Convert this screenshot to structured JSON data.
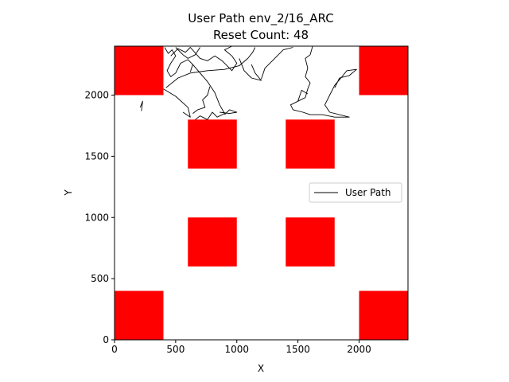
{
  "chart_data": {
    "type": "line",
    "title": "User Path env_2/16_ARC",
    "subtitle": "Reset Count: 48",
    "xlabel": "X",
    "ylabel": "Y",
    "xlim": [
      0,
      2400
    ],
    "ylim": [
      0,
      2400
    ],
    "xticks": [
      0,
      500,
      1000,
      1500,
      2000
    ],
    "yticks": [
      0,
      500,
      1000,
      1500,
      2000
    ],
    "grid": false,
    "legend": {
      "placement": "center-right",
      "entries": [
        "User Path"
      ]
    },
    "obstacle_color": "#ff0000",
    "path_color": "#000000",
    "obstacles": [
      {
        "x0": 0,
        "y0": 2000,
        "x1": 400,
        "y1": 2400
      },
      {
        "x0": 2000,
        "y0": 2000,
        "x1": 2400,
        "y1": 2400
      },
      {
        "x0": 600,
        "y0": 1400,
        "x1": 1000,
        "y1": 1800
      },
      {
        "x0": 1400,
        "y0": 1400,
        "x1": 1800,
        "y1": 1800
      },
      {
        "x0": 600,
        "y0": 600,
        "x1": 1000,
        "y1": 1000
      },
      {
        "x0": 1400,
        "y0": 600,
        "x1": 1800,
        "y1": 1000
      },
      {
        "x0": 0,
        "y0": 0,
        "x1": 400,
        "y1": 400
      },
      {
        "x0": 2000,
        "y0": 0,
        "x1": 2400,
        "y1": 400
      }
    ],
    "series": [
      {
        "name": "User Path",
        "segments": [
          [
            [
              220,
              1870
            ],
            [
              230,
              1950
            ],
            [
              210,
              1900
            ]
          ],
          [
            [
              400,
              2050
            ],
            [
              500,
              1990
            ],
            [
              600,
              1900
            ],
            [
              620,
              1820
            ],
            [
              560,
              1860
            ]
          ],
          [
            [
              420,
              2060
            ],
            [
              520,
              2140
            ],
            [
              620,
              2180
            ],
            [
              760,
              2200
            ],
            [
              900,
              2210
            ],
            [
              1020,
              2240
            ],
            [
              1090,
              2300
            ],
            [
              1130,
              2350
            ],
            [
              1150,
              2390
            ]
          ],
          [
            [
              410,
              2390
            ],
            [
              440,
              2340
            ],
            [
              470,
              2370
            ],
            [
              500,
              2320
            ],
            [
              460,
              2260
            ],
            [
              430,
              2200
            ],
            [
              460,
              2150
            ],
            [
              500,
              2180
            ],
            [
              540,
              2260
            ],
            [
              600,
              2290
            ],
            [
              640,
              2250
            ],
            [
              620,
              2190
            ]
          ],
          [
            [
              460,
              2320
            ],
            [
              520,
              2380
            ],
            [
              580,
              2350
            ],
            [
              620,
              2390
            ],
            [
              700,
              2300
            ],
            [
              760,
              2280
            ],
            [
              820,
              2320
            ],
            [
              880,
              2280
            ],
            [
              920,
              2240
            ],
            [
              960,
              2200
            ],
            [
              1000,
              2260
            ],
            [
              960,
              2320
            ],
            [
              900,
              2370
            ],
            [
              960,
              2400
            ]
          ],
          [
            [
              500,
              2390
            ],
            [
              560,
              2330
            ],
            [
              600,
              2300
            ],
            [
              660,
              2330
            ],
            [
              700,
              2390
            ]
          ],
          [
            [
              640,
              2250
            ],
            [
              700,
              2180
            ],
            [
              760,
              2110
            ],
            [
              820,
              2020
            ],
            [
              860,
              1920
            ],
            [
              900,
              1850
            ],
            [
              840,
              1820
            ],
            [
              800,
              1860
            ],
            [
              760,
              1800
            ],
            [
              700,
              1830
            ],
            [
              660,
              1800
            ]
          ],
          [
            [
              780,
              2070
            ],
            [
              760,
              2000
            ],
            [
              720,
              1960
            ],
            [
              740,
              1900
            ],
            [
              680,
              1880
            ],
            [
              640,
              1850
            ]
          ],
          [
            [
              860,
              1860
            ],
            [
              940,
              1850
            ],
            [
              1000,
              1860
            ],
            [
              940,
              1880
            ],
            [
              900,
              1840
            ]
          ],
          [
            [
              1020,
              2300
            ],
            [
              1060,
              2200
            ],
            [
              1120,
              2140
            ],
            [
              1200,
              2120
            ],
            [
              1150,
              2180
            ],
            [
              1120,
              2250
            ]
          ],
          [
            [
              1200,
              2130
            ],
            [
              1230,
              2220
            ],
            [
              1300,
              2290
            ],
            [
              1380,
              2370
            ],
            [
              1460,
              2390
            ]
          ],
          [
            [
              1620,
              2400
            ],
            [
              1600,
              2330
            ],
            [
              1560,
              2300
            ],
            [
              1580,
              2220
            ],
            [
              1560,
              2150
            ],
            [
              1600,
              2100
            ],
            [
              1580,
              2050
            ],
            [
              1560,
              1980
            ],
            [
              1500,
              1950
            ],
            [
              1440,
              1920
            ],
            [
              1460,
              1880
            ],
            [
              1540,
              1860
            ],
            [
              1600,
              1840
            ],
            [
              1700,
              1840
            ],
            [
              1800,
              1820
            ],
            [
              1920,
              1820
            ],
            [
              1760,
              1860
            ],
            [
              1720,
              1920
            ],
            [
              1760,
              2000
            ],
            [
              1800,
              2080
            ],
            [
              1860,
              2150
            ],
            [
              1900,
              2200
            ],
            [
              1980,
              2210
            ],
            [
              1920,
              2160
            ],
            [
              1840,
              2140
            ],
            [
              1800,
              2060
            ]
          ],
          [
            [
              1500,
              1950
            ],
            [
              1530,
              2040
            ],
            [
              1580,
              2010
            ]
          ]
        ]
      }
    ]
  }
}
